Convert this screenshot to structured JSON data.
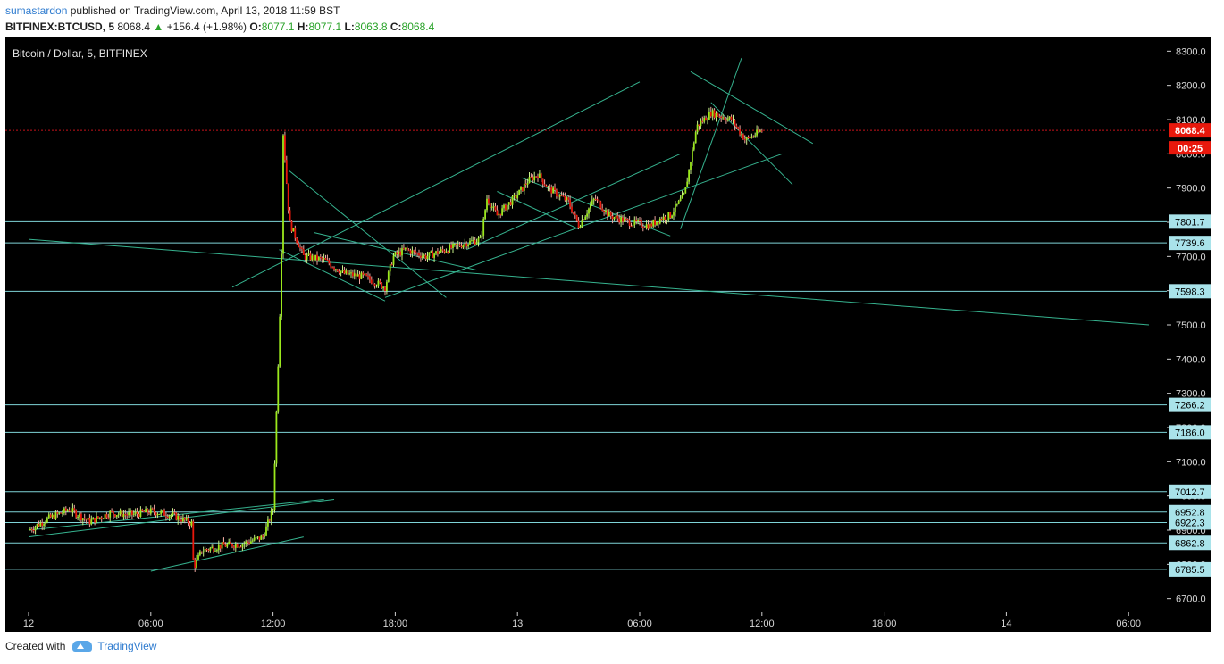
{
  "header": {
    "author": "sumastardon",
    "published_text": "published on TradingView.com, April 13, 2018 11:59 BST",
    "symbol": "BITFINEX:BTCUSD, 5",
    "last": "8068.4",
    "change_arrow": "▲",
    "change": "+156.4 (+1.98%)",
    "o_label": "O:",
    "o_value": "8077.1",
    "h_label": "H:",
    "h_value": "8077.1",
    "l_label": "L:",
    "l_value": "8063.8",
    "c_label": "C:",
    "c_value": "8068.4"
  },
  "footer": {
    "created_with": "Created with",
    "brand": "TradingView"
  },
  "colors": {
    "background": "#000000",
    "up": "#9be81c",
    "down": "#e8180c",
    "line": "#7fd4d8",
    "trend": "#36b38f",
    "price_tag": "#e8180c",
    "level_tag": "#a9e3ea"
  },
  "chart_data": {
    "type": "candlestick",
    "title": "Bitcoin / Dollar, 5, BITFINEX",
    "ylim": [
      6660,
      8340
    ],
    "y_ticks": [
      6700,
      6800,
      6900,
      7000,
      7100,
      7200,
      7300,
      7400,
      7500,
      7600,
      7700,
      7800,
      7900,
      8000,
      8100,
      8200,
      8300
    ],
    "y_tick_labels": [
      "6700.0",
      "6800.0",
      "6900.0",
      "7000.0",
      "7100.0",
      "7200.0",
      "7300.0",
      "7400.0",
      "7500.0",
      "7600.0",
      "7700.0",
      "7800.0",
      "7900.0",
      "8000.0",
      "8100.0",
      "8200.0",
      "8300.0"
    ],
    "x_range_hours": [
      0,
      48
    ],
    "x_ticks": [
      {
        "t": 0,
        "label": "12"
      },
      {
        "t": 6,
        "label": "06:00"
      },
      {
        "t": 12,
        "label": "12:00"
      },
      {
        "t": 18,
        "label": "18:00"
      },
      {
        "t": 24,
        "label": "13"
      },
      {
        "t": 30,
        "label": "06:00"
      },
      {
        "t": 36,
        "label": "12:00"
      },
      {
        "t": 42,
        "label": "18:00"
      },
      {
        "t": 48,
        "label": "14"
      },
      {
        "t": 54,
        "label": "06:00"
      }
    ],
    "horizontal_levels": [
      8068.4,
      7801.7,
      7739.6,
      7598.3,
      7266.2,
      7186.0,
      7012.7,
      6952.8,
      6922.3,
      6862.8,
      6785.5
    ],
    "level_labels": [
      "8068.4",
      "7801.7",
      "7739.6",
      "7598.3",
      "7266.2",
      "7186.0",
      "7012.7",
      "6952.8",
      "6922.3",
      "6862.8",
      "6785.5"
    ],
    "countdown": "00:25",
    "anchors": [
      [
        0.0,
        6900
      ],
      [
        1.0,
        6935
      ],
      [
        2.0,
        6960
      ],
      [
        3.0,
        6925
      ],
      [
        4.0,
        6950
      ],
      [
        5.0,
        6945
      ],
      [
        6.0,
        6955
      ],
      [
        7.0,
        6945
      ],
      [
        8.0,
        6920
      ],
      [
        8.1,
        6790
      ],
      [
        8.5,
        6840
      ],
      [
        9.5,
        6855
      ],
      [
        10.5,
        6860
      ],
      [
        11.5,
        6880
      ],
      [
        12.0,
        6960
      ],
      [
        12.2,
        7300
      ],
      [
        12.4,
        7650
      ],
      [
        12.5,
        8060
      ],
      [
        12.8,
        7800
      ],
      [
        13.5,
        7700
      ],
      [
        14.5,
        7690
      ],
      [
        15.5,
        7650
      ],
      [
        16.5,
        7640
      ],
      [
        17.5,
        7610
      ],
      [
        17.9,
        7700
      ],
      [
        18.5,
        7720
      ],
      [
        19.5,
        7700
      ],
      [
        20.5,
        7720
      ],
      [
        21.5,
        7740
      ],
      [
        22.2,
        7750
      ],
      [
        22.5,
        7870
      ],
      [
        23.0,
        7820
      ],
      [
        24.0,
        7880
      ],
      [
        24.5,
        7920
      ],
      [
        25.0,
        7940
      ],
      [
        25.5,
        7900
      ],
      [
        26.5,
        7860
      ],
      [
        27.0,
        7790
      ],
      [
        27.8,
        7870
      ],
      [
        28.5,
        7820
      ],
      [
        29.5,
        7800
      ],
      [
        30.5,
        7790
      ],
      [
        31.0,
        7810
      ],
      [
        31.5,
        7820
      ],
      [
        32.2,
        7880
      ],
      [
        32.8,
        8080
      ],
      [
        33.5,
        8120
      ],
      [
        34.5,
        8100
      ],
      [
        35.2,
        8040
      ],
      [
        36.0,
        8068
      ]
    ],
    "trend_lines": [
      [
        [
          0,
          6880
        ],
        [
          15,
          6990
        ]
      ],
      [
        [
          0,
          6900
        ],
        [
          14.5,
          6990
        ]
      ],
      [
        [
          0,
          7750
        ],
        [
          55,
          7500
        ]
      ],
      [
        [
          6,
          6780
        ],
        [
          13.5,
          6880
        ]
      ],
      [
        [
          10,
          7610
        ],
        [
          30,
          8210
        ]
      ],
      [
        [
          12.3,
          7720
        ],
        [
          17.5,
          7570
        ]
      ],
      [
        [
          12.8,
          7950
        ],
        [
          20.5,
          7580
        ]
      ],
      [
        [
          14,
          7770
        ],
        [
          22,
          7660
        ]
      ],
      [
        [
          17.5,
          7580
        ],
        [
          37,
          8000
        ]
      ],
      [
        [
          21.5,
          7720
        ],
        [
          32,
          8000
        ]
      ],
      [
        [
          23,
          7890
        ],
        [
          27,
          7780
        ]
      ],
      [
        [
          24.2,
          7930
        ],
        [
          31.5,
          7760
        ]
      ],
      [
        [
          32,
          7780
        ],
        [
          35,
          8280
        ]
      ],
      [
        [
          32.5,
          8240
        ],
        [
          38.5,
          8030
        ]
      ],
      [
        [
          33.5,
          8150
        ],
        [
          37.5,
          7910
        ]
      ]
    ]
  }
}
